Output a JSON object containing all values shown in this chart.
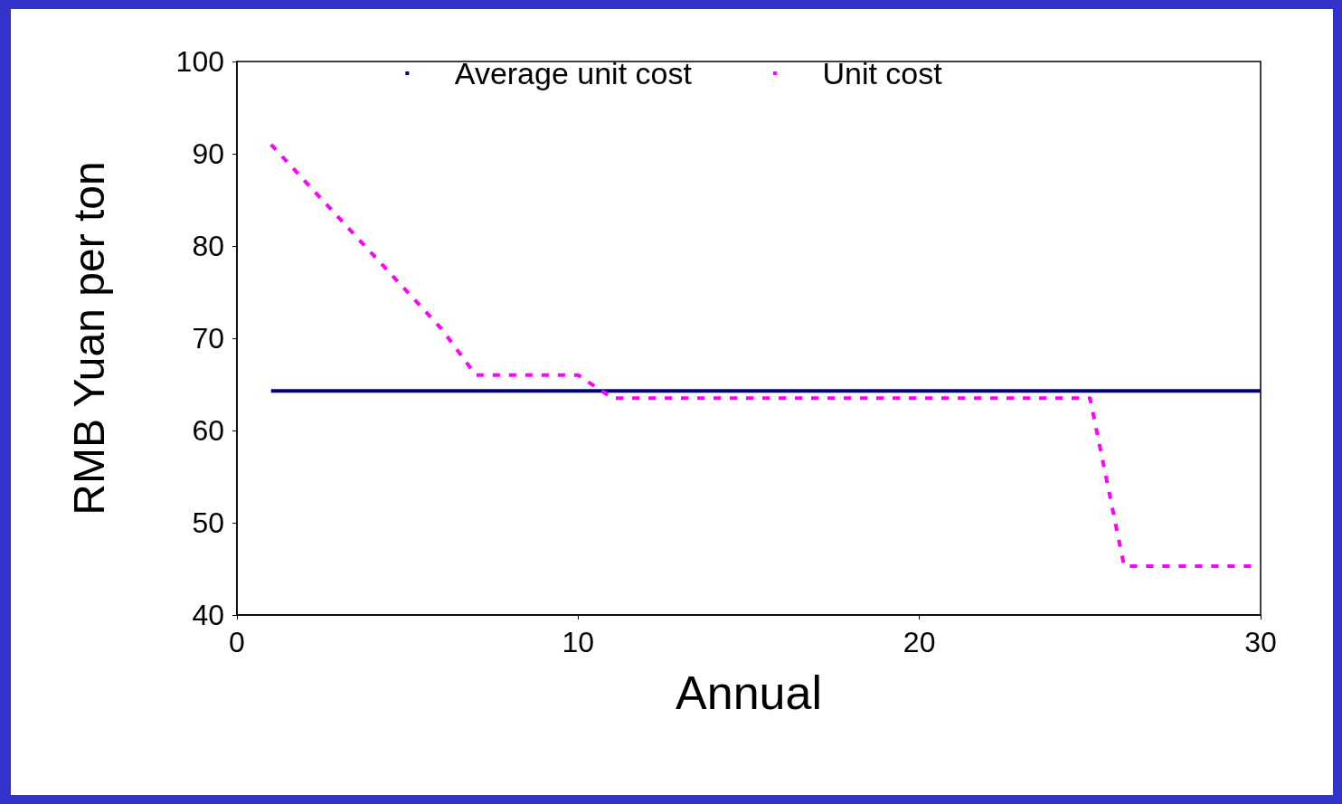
{
  "chart_data": {
    "type": "line",
    "xlabel": "Annual",
    "ylabel": "RMB Yuan per ton",
    "xlim": [
      0,
      30
    ],
    "xticks": [
      0,
      10,
      20,
      30
    ],
    "ylim": [
      40,
      100
    ],
    "yticks": [
      40,
      50,
      60,
      70,
      80,
      90,
      100
    ],
    "grid": false,
    "legend": "top",
    "marker": "none",
    "series": [
      {
        "name": "Average unit cost",
        "color": "#000080",
        "line_style": "solid",
        "x": [
          1,
          30
        ],
        "values": [
          64.3,
          64.3
        ]
      },
      {
        "name": "Unit cost",
        "color": "#ff00ff",
        "line_style": "dashed",
        "x": [
          1,
          2,
          3,
          4,
          5,
          6,
          7,
          8,
          9,
          10,
          11,
          12,
          13,
          14,
          15,
          16,
          17,
          18,
          19,
          20,
          21,
          22,
          23,
          24,
          25,
          26,
          27,
          28,
          29,
          30
        ],
        "values": [
          91,
          87,
          83,
          79,
          75,
          71,
          66,
          66,
          66,
          66,
          63.5,
          63.5,
          63.5,
          63.5,
          63.5,
          63.5,
          63.5,
          63.5,
          63.5,
          63.5,
          63.5,
          63.5,
          63.5,
          63.5,
          63.5,
          45.3,
          45.3,
          45.3,
          45.3,
          45.3
        ]
      }
    ]
  }
}
